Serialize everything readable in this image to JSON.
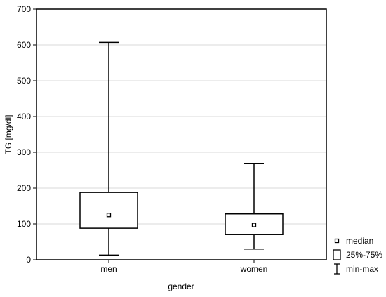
{
  "chart_data": {
    "type": "boxplot",
    "xlabel": "gender",
    "ylabel": "TG [mg/dl]",
    "ylim": [
      0,
      700
    ],
    "yticks": [
      0,
      100,
      200,
      300,
      400,
      500,
      600,
      700
    ],
    "grid": true,
    "legend_position": "bottom-right",
    "categories": [
      "men",
      "women"
    ],
    "boxes": [
      {
        "category": "men",
        "min": 13,
        "q1": 88,
        "median": 125,
        "q3": 188,
        "max": 607
      },
      {
        "category": "women",
        "min": 30,
        "q1": 71,
        "median": 97,
        "q3": 128,
        "max": 269
      }
    ],
    "legend": [
      {
        "symbol": "median",
        "label": "median"
      },
      {
        "symbol": "box",
        "label": "25%-75%"
      },
      {
        "symbol": "whisker",
        "label": "min-max"
      }
    ]
  }
}
